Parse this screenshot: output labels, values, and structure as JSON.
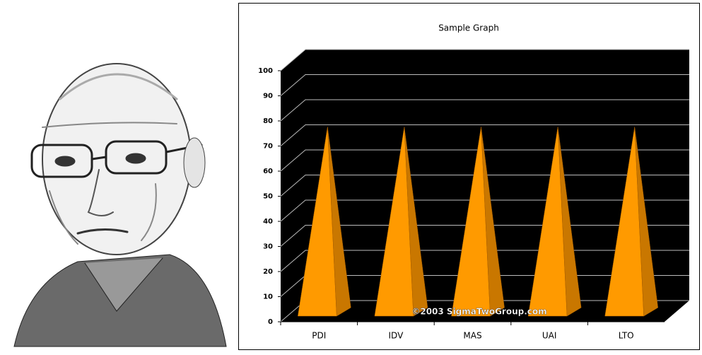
{
  "chart_data": {
    "type": "pyramid3d",
    "title": "Sample Graph",
    "categories": [
      "PDI",
      "IDV",
      "MAS",
      "UAI",
      "LTO"
    ],
    "values": [
      72,
      72,
      72,
      72,
      72
    ],
    "color": "#ff9a00",
    "side_color": "#c97700",
    "background": "#000000",
    "grid": true,
    "ylim": [
      0,
      100
    ],
    "yticks": [
      0,
      10,
      20,
      30,
      40,
      50,
      60,
      70,
      80,
      90,
      100
    ],
    "watermark": "©2003 SigmaTwoGroup.com"
  }
}
